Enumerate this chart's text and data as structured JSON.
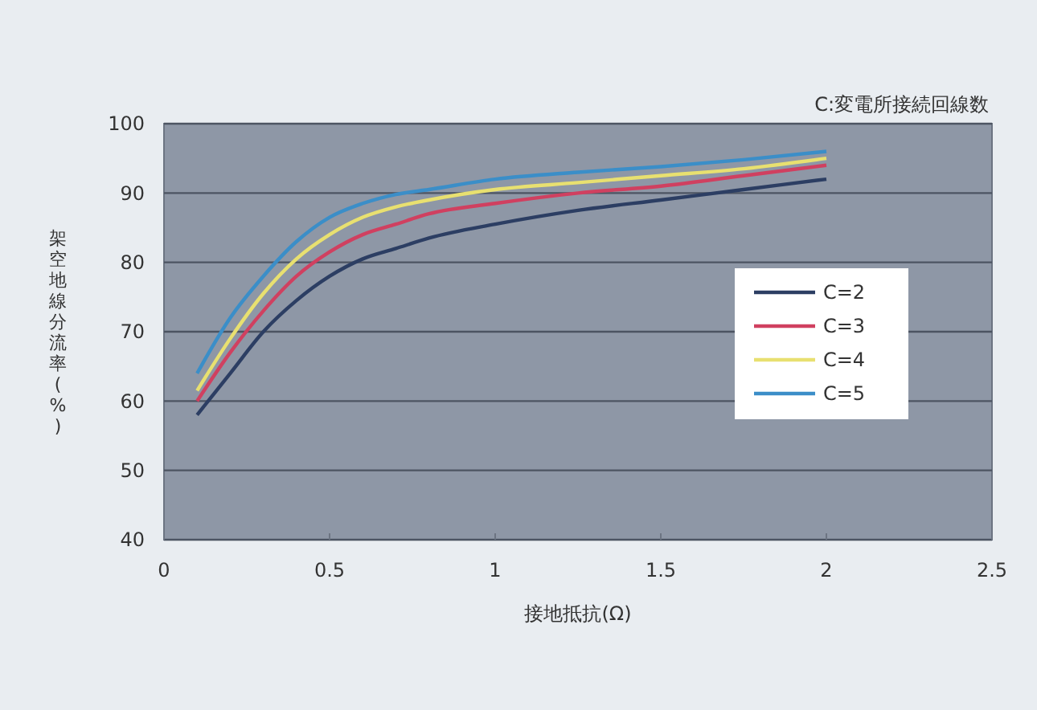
{
  "chart_data": {
    "type": "line",
    "xlabel": "接地抵抗(Ω)",
    "ylabel": "架空地線分流率(%)",
    "annotations": [
      "C:変電所接続回線数"
    ],
    "x": [
      0.1,
      0.2,
      0.3,
      0.4,
      0.5,
      0.6,
      0.7,
      0.8,
      1.0,
      1.25,
      1.5,
      1.75,
      2.0
    ],
    "xlim": [
      0,
      2.5
    ],
    "xticks": [
      0,
      0.5,
      1,
      1.5,
      2,
      2.5
    ],
    "ylim": [
      40,
      100
    ],
    "yticks": [
      40,
      50,
      60,
      70,
      80,
      90,
      100
    ],
    "grid": "y",
    "legend": "right",
    "marker": "none",
    "line_style": "solid",
    "series": [
      {
        "name": "C=2",
        "color": "#2c3e63",
        "values": [
          58,
          64,
          70,
          74.5,
          78,
          80.5,
          82,
          83.5,
          85.5,
          87.5,
          89,
          90.5,
          92
        ]
      },
      {
        "name": "C=3",
        "color": "#d04060",
        "values": [
          60,
          67,
          73,
          78,
          81.5,
          84,
          85.5,
          87,
          88.5,
          90,
          91,
          92.5,
          94
        ]
      },
      {
        "name": "C=4",
        "color": "#e8e070",
        "values": [
          61.5,
          69,
          75.5,
          80.5,
          84,
          86.5,
          88,
          89,
          90.5,
          91.5,
          92.5,
          93.5,
          95
        ]
      },
      {
        "name": "C=5",
        "color": "#3b8ec8",
        "values": [
          64,
          72,
          78,
          83,
          86.5,
          88.5,
          89.8,
          90.5,
          92,
          93,
          93.8,
          94.8,
          96
        ]
      }
    ]
  }
}
